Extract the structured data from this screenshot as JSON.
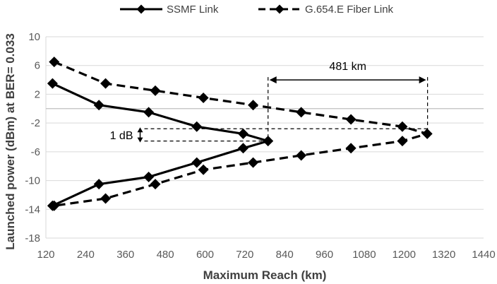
{
  "chart_data": {
    "type": "line",
    "xlabel": "Maximum Reach (km)",
    "ylabel": "Launched power (dBm) at BER= 0.033",
    "xlim": [
      120,
      1440
    ],
    "ylim": [
      -18,
      10
    ],
    "xticks": [
      120,
      240,
      360,
      480,
      600,
      720,
      840,
      960,
      1080,
      1200,
      1320,
      1440
    ],
    "yticks": [
      10,
      6,
      2,
      -2,
      -6,
      -10,
      -14,
      -18
    ],
    "grid": "horizontal",
    "legend_position": "top",
    "series": [
      {
        "name": "SSMF Link",
        "style": "solid",
        "color": "#000000",
        "marker": "diamond",
        "x": [
          140,
          280,
          430,
          575,
          715,
          790,
          715,
          575,
          430,
          280,
          140
        ],
        "y": [
          3.5,
          0.5,
          -0.5,
          -2.5,
          -3.5,
          -4.5,
          -5.5,
          -7.5,
          -9.5,
          -10.5,
          -13.5
        ]
      },
      {
        "name": "G.654.E Fiber Link",
        "style": "dashed",
        "color": "#000000",
        "marker": "diamond",
        "x": [
          145,
          300,
          450,
          595,
          745,
          890,
          1040,
          1195,
          1270,
          1195,
          1040,
          890,
          745,
          595,
          450,
          300,
          145
        ],
        "y": [
          6.5,
          3.5,
          2.5,
          1.5,
          0.5,
          -0.5,
          -1.5,
          -2.5,
          -3.5,
          -4.5,
          -5.5,
          -6.5,
          -7.5,
          -8.5,
          -10.5,
          -12.5,
          -13.5
        ]
      }
    ],
    "annotations": [
      {
        "text": "481 km",
        "type": "horizontal-span",
        "x": [
          790,
          1271
        ],
        "y": 4
      },
      {
        "text": "1 dB",
        "type": "vertical-span",
        "x": 400,
        "y": [
          -2.8,
          -4.5
        ]
      }
    ]
  }
}
